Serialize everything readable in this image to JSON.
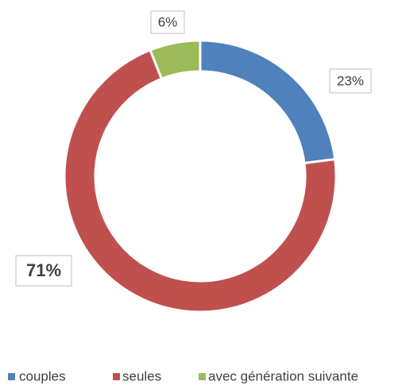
{
  "chart_data": {
    "type": "donut",
    "categories": [
      "couples",
      "seules",
      "avec génération suivante"
    ],
    "values": [
      23,
      71,
      6
    ],
    "value_labels": [
      "23%",
      "71%",
      "6%"
    ],
    "colors": [
      "#4f81bd",
      "#c0504d",
      "#9bbb59"
    ]
  }
}
